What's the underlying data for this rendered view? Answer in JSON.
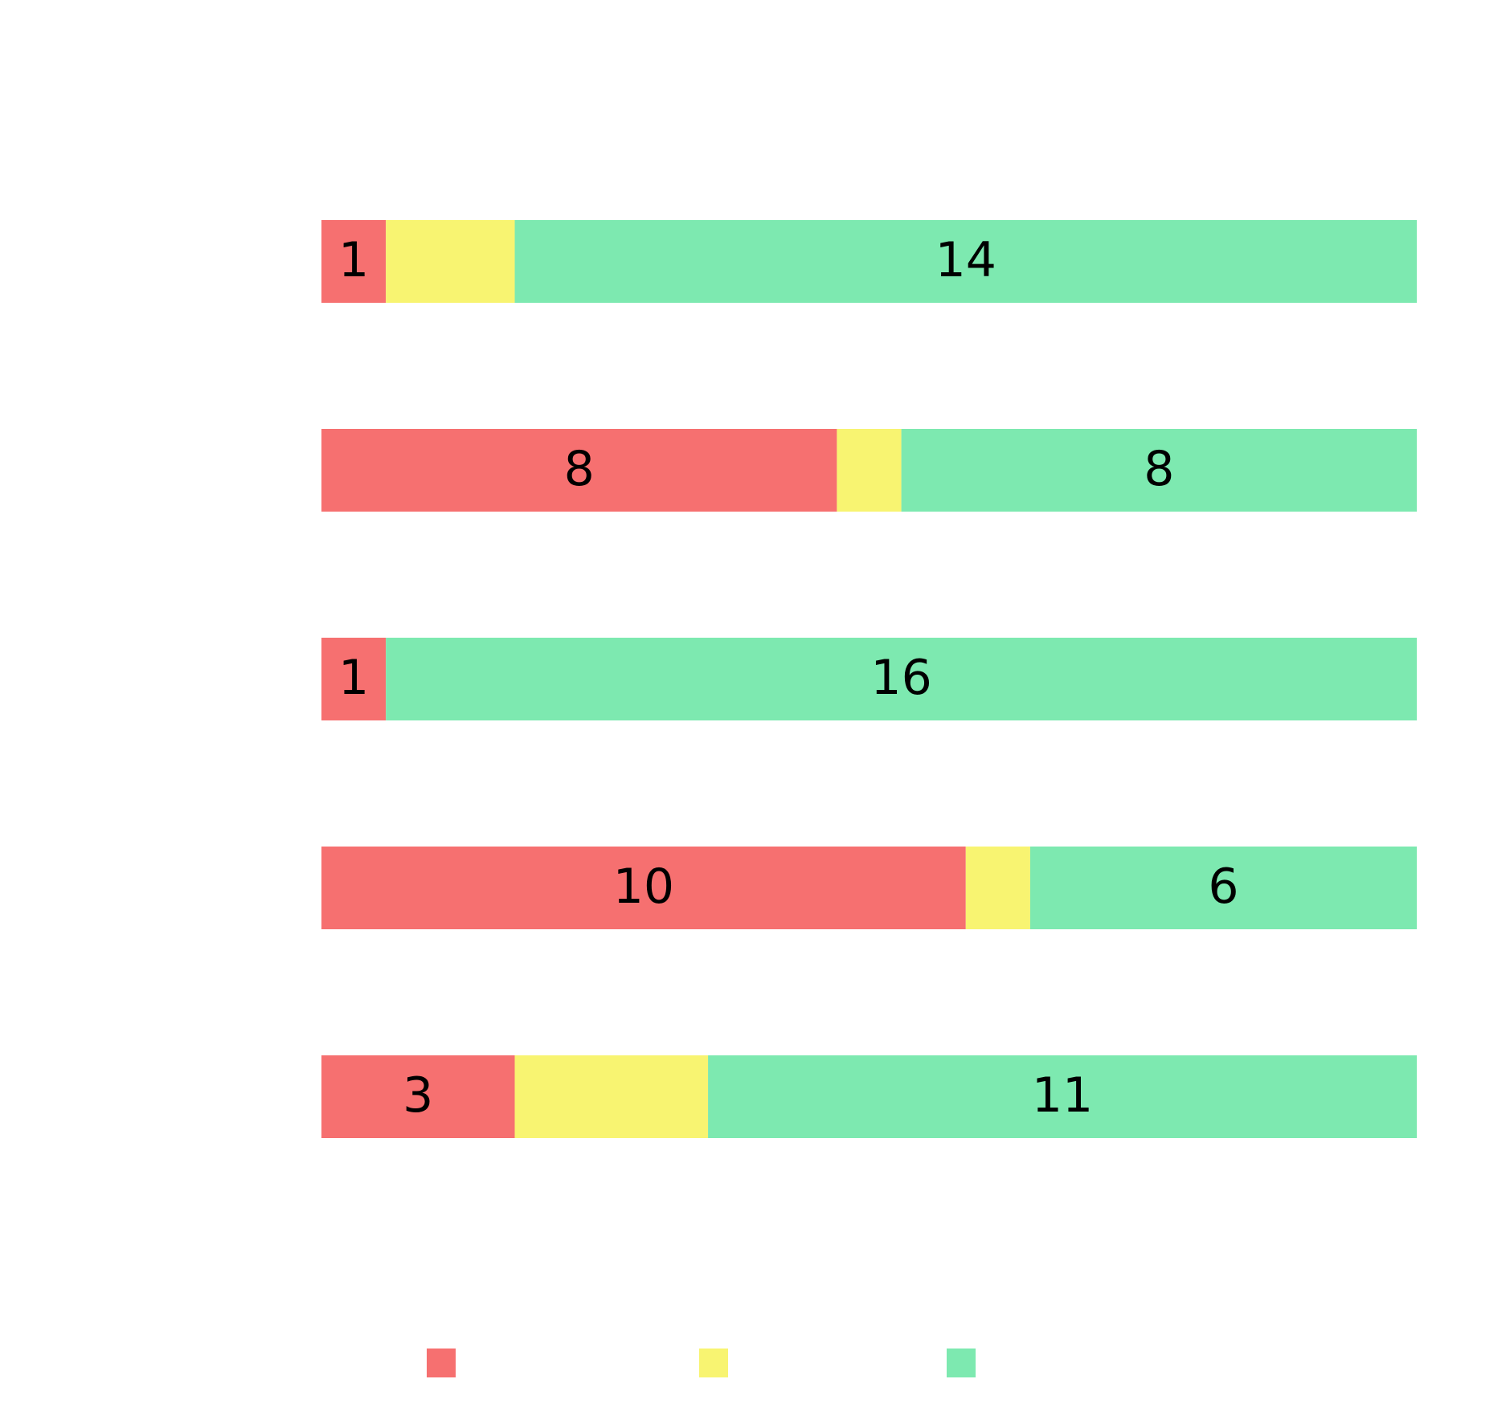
{
  "chart_data": {
    "type": "bar",
    "orientation": "horizontal",
    "stacked": true,
    "normalized": true,
    "categories": [
      "",
      "",
      "",
      "",
      ""
    ],
    "series": [
      {
        "color": "#F67070",
        "values": [
          1,
          8,
          1,
          10,
          3
        ],
        "labels": [
          "1",
          "8",
          "1",
          "10",
          "3"
        ]
      },
      {
        "color": "#F8F471",
        "values": [
          2,
          1,
          0,
          1,
          3
        ],
        "labels": [
          "",
          "",
          "",
          "",
          ""
        ]
      },
      {
        "color": "#7DE9B0",
        "values": [
          14,
          8,
          16,
          6,
          11
        ],
        "labels": [
          "14",
          "8",
          "16",
          "6",
          "11"
        ]
      }
    ],
    "legend": "bottom",
    "grid": false,
    "title": "",
    "xlabel": "",
    "ylabel": ""
  }
}
